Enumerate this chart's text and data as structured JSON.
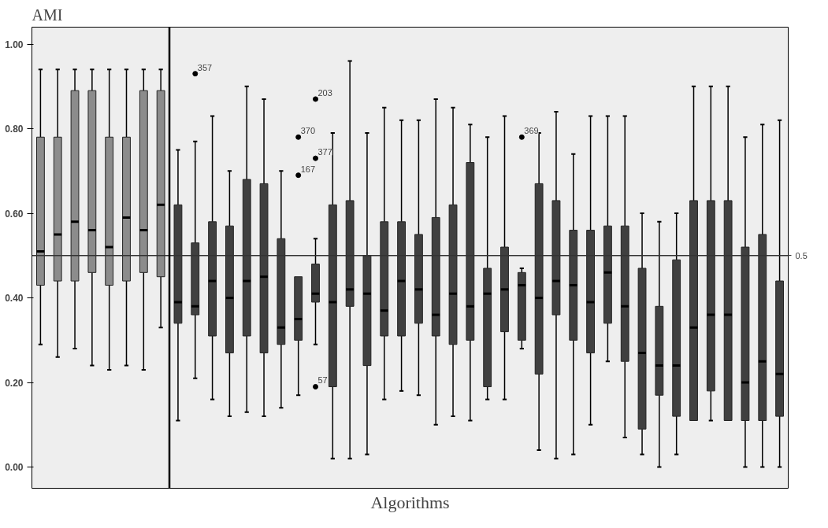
{
  "chart_data": {
    "type": "box",
    "ylabel": "AMI",
    "xlabel": "Algorithms",
    "categories": [
      null,
      null,
      null,
      null,
      null,
      null,
      null,
      null,
      null,
      null,
      null,
      null,
      null,
      null,
      null,
      null,
      null,
      null,
      null,
      null,
      null,
      null,
      null,
      null,
      null,
      null,
      null,
      null,
      null,
      null,
      null,
      null,
      null,
      null,
      null,
      null,
      null,
      null,
      null,
      null,
      null,
      null,
      null,
      null
    ],
    "colors": [
      "#8c8c8c",
      "#8c8c8c",
      "#8c8c8c",
      "#8c8c8c",
      "#8c8c8c",
      "#8c8c8c",
      "#8c8c8c",
      "#8c8c8c",
      "#404040",
      "#404040",
      "#404040",
      "#404040",
      "#404040",
      "#404040",
      "#404040",
      "#404040",
      "#404040",
      "#404040",
      "#404040",
      "#404040",
      "#404040",
      "#404040",
      "#404040",
      "#404040",
      "#404040",
      "#404040",
      "#404040",
      "#404040",
      "#404040",
      "#404040",
      "#404040",
      "#404040",
      "#404040",
      "#404040",
      "#404040",
      "#404040",
      "#404040",
      "#404040",
      "#404040",
      "#404040",
      "#404040",
      "#404040",
      "#404040",
      "#404040"
    ],
    "boxes": [
      {
        "low": 0.29,
        "q1": 0.43,
        "median": 0.51,
        "q3": 0.78,
        "high": 0.94
      },
      {
        "low": 0.26,
        "q1": 0.44,
        "median": 0.55,
        "q3": 0.78,
        "high": 0.94
      },
      {
        "low": 0.28,
        "q1": 0.44,
        "median": 0.58,
        "q3": 0.89,
        "high": 0.94
      },
      {
        "low": 0.24,
        "q1": 0.46,
        "median": 0.56,
        "q3": 0.89,
        "high": 0.94
      },
      {
        "low": 0.23,
        "q1": 0.43,
        "median": 0.52,
        "q3": 0.78,
        "high": 0.94
      },
      {
        "low": 0.24,
        "q1": 0.44,
        "median": 0.59,
        "q3": 0.78,
        "high": 0.94
      },
      {
        "low": 0.23,
        "q1": 0.46,
        "median": 0.56,
        "q3": 0.89,
        "high": 0.94
      },
      {
        "low": 0.33,
        "q1": 0.45,
        "median": 0.62,
        "q3": 0.89,
        "high": 0.94
      },
      {
        "low": 0.11,
        "q1": 0.34,
        "median": 0.39,
        "q3": 0.62,
        "high": 0.75
      },
      {
        "low": 0.21,
        "q1": 0.36,
        "median": 0.38,
        "q3": 0.53,
        "high": 0.77,
        "outliers": [
          0.93
        ]
      },
      {
        "low": 0.16,
        "q1": 0.31,
        "median": 0.44,
        "q3": 0.58,
        "high": 0.83
      },
      {
        "low": 0.12,
        "q1": 0.27,
        "median": 0.4,
        "q3": 0.57,
        "high": 0.7
      },
      {
        "low": 0.13,
        "q1": 0.31,
        "median": 0.44,
        "q3": 0.68,
        "high": 0.9
      },
      {
        "low": 0.12,
        "q1": 0.27,
        "median": 0.45,
        "q3": 0.67,
        "high": 0.87
      },
      {
        "low": 0.14,
        "q1": 0.29,
        "median": 0.33,
        "q3": 0.54,
        "high": 0.7
      },
      {
        "low": 0.17,
        "q1": 0.3,
        "median": 0.35,
        "q3": 0.45,
        "high": 0.45,
        "outliers": [
          0.78,
          0.69
        ]
      },
      {
        "low": 0.29,
        "q1": 0.39,
        "median": 0.41,
        "q3": 0.48,
        "high": 0.54,
        "outliers": [
          0.87,
          0.73,
          0.19
        ]
      },
      {
        "low": 0.02,
        "q1": 0.19,
        "median": 0.39,
        "q3": 0.62,
        "high": 0.79
      },
      {
        "low": 0.02,
        "q1": 0.38,
        "median": 0.42,
        "q3": 0.63,
        "high": 0.96
      },
      {
        "low": 0.03,
        "q1": 0.24,
        "median": 0.41,
        "q3": 0.5,
        "high": 0.79
      },
      {
        "low": 0.16,
        "q1": 0.31,
        "median": 0.37,
        "q3": 0.58,
        "high": 0.85
      },
      {
        "low": 0.18,
        "q1": 0.31,
        "median": 0.44,
        "q3": 0.58,
        "high": 0.82
      },
      {
        "low": 0.17,
        "q1": 0.34,
        "median": 0.42,
        "q3": 0.55,
        "high": 0.82
      },
      {
        "low": 0.1,
        "q1": 0.31,
        "median": 0.36,
        "q3": 0.59,
        "high": 0.87
      },
      {
        "low": 0.12,
        "q1": 0.29,
        "median": 0.41,
        "q3": 0.62,
        "high": 0.85
      },
      {
        "low": 0.11,
        "q1": 0.3,
        "median": 0.38,
        "q3": 0.72,
        "high": 0.81
      },
      {
        "low": 0.16,
        "q1": 0.19,
        "median": 0.41,
        "q3": 0.47,
        "high": 0.78
      },
      {
        "low": 0.16,
        "q1": 0.32,
        "median": 0.42,
        "q3": 0.52,
        "high": 0.83
      },
      {
        "low": 0.28,
        "q1": 0.3,
        "median": 0.43,
        "q3": 0.46,
        "high": 0.47,
        "outliers": [
          0.78
        ]
      },
      {
        "low": 0.04,
        "q1": 0.22,
        "median": 0.4,
        "q3": 0.67,
        "high": 0.79
      },
      {
        "low": 0.02,
        "q1": 0.36,
        "median": 0.44,
        "q3": 0.63,
        "high": 0.84
      },
      {
        "low": 0.03,
        "q1": 0.3,
        "median": 0.43,
        "q3": 0.56,
        "high": 0.74
      },
      {
        "low": 0.1,
        "q1": 0.27,
        "median": 0.39,
        "q3": 0.56,
        "high": 0.83
      },
      {
        "low": 0.25,
        "q1": 0.34,
        "median": 0.46,
        "q3": 0.57,
        "high": 0.83
      },
      {
        "low": 0.07,
        "q1": 0.25,
        "median": 0.38,
        "q3": 0.57,
        "high": 0.83
      },
      {
        "low": 0.03,
        "q1": 0.09,
        "median": 0.27,
        "q3": 0.47,
        "high": 0.6
      },
      {
        "low": 0.0,
        "q1": 0.17,
        "median": 0.24,
        "q3": 0.38,
        "high": 0.58
      },
      {
        "low": 0.03,
        "q1": 0.12,
        "median": 0.24,
        "q3": 0.49,
        "high": 0.6
      },
      {
        "low": 0.11,
        "q1": 0.11,
        "median": 0.33,
        "q3": 0.63,
        "high": 0.9
      },
      {
        "low": 0.11,
        "q1": 0.18,
        "median": 0.36,
        "q3": 0.63,
        "high": 0.9
      },
      {
        "low": 0.11,
        "q1": 0.11,
        "median": 0.36,
        "q3": 0.63,
        "high": 0.9
      },
      {
        "low": 0.0,
        "q1": 0.11,
        "median": 0.2,
        "q3": 0.52,
        "high": 0.78
      },
      {
        "low": 0.0,
        "q1": 0.11,
        "median": 0.25,
        "q3": 0.55,
        "high": 0.81
      },
      {
        "low": 0.0,
        "q1": 0.12,
        "median": 0.22,
        "q3": 0.44,
        "high": 0.82
      }
    ],
    "annotations": [
      "357",
      "370",
      "167",
      "203",
      "377",
      "57",
      "369"
    ],
    "ylim": [
      -0.05,
      1.04
    ],
    "yticks": [
      {
        "value": 0,
        "label": "0.00"
      },
      {
        "value": 0.2,
        "label": "0.20"
      },
      {
        "value": 0.4,
        "label": "0.40"
      },
      {
        "value": 0.6,
        "label": "0.60"
      },
      {
        "value": 0.8,
        "label": "0.80"
      },
      {
        "value": 1,
        "label": "1.00"
      }
    ],
    "ref_lines": [
      {
        "axis": "y",
        "value": 0.5,
        "label": "0.5"
      }
    ]
  }
}
